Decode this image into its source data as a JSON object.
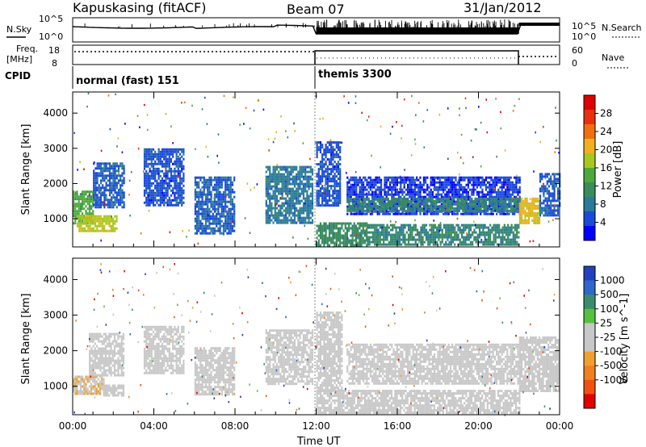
{
  "header": {
    "title": "Kapuskasing (fitACF)",
    "beam": "Beam 07",
    "date": "31/Jan/2012"
  },
  "strips": {
    "nsky_label": "N.Sky",
    "nsearch_label": "N.Search",
    "sky_ticks": [
      "10^5",
      "10^0"
    ],
    "search_ticks": [
      "10^5",
      "10^0"
    ],
    "freq_label": "Freq.",
    "freq_unit": "[MHz]",
    "freq_ticks": [
      "18",
      "8"
    ],
    "nave_label": "Nave",
    "nave_ticks": [
      "60",
      "0"
    ],
    "cpid_label": "CPID",
    "cpid_segments": [
      {
        "label": "normal (fast) 151",
        "start_hour": 0,
        "end_hour": 12
      },
      {
        "label": "themis 3300",
        "start_hour": 12,
        "end_hour": 24
      }
    ]
  },
  "x_axis": {
    "title": "Time UT",
    "ticks": [
      "00:00",
      "04:00",
      "08:00",
      "12:00",
      "16:00",
      "20:00",
      "00:00"
    ],
    "tick_hours": [
      0,
      4,
      8,
      12,
      16,
      20,
      24
    ],
    "range_hours": [
      0,
      24
    ]
  },
  "colors": {
    "power_scale": [
      "#0000ff",
      "#1a4ad8",
      "#2a7a9a",
      "#3a8c5a",
      "#4daa3a",
      "#a8c820",
      "#f0b020",
      "#f07010",
      "#e83010",
      "#e00000"
    ],
    "velocity_scale": [
      "#2040c0",
      "#2e68c8",
      "#3c8c6c",
      "#58c040",
      "#c8c8c8",
      "#c8c8c8",
      "#f0a030",
      "#f08020",
      "#f05010",
      "#e00000"
    ]
  },
  "chart_data": [
    {
      "type": "heatmap",
      "name": "power-panel",
      "xlabel": "Time UT",
      "ylabel": "Slant Range [km]",
      "xlim": [
        0,
        24
      ],
      "ylim": [
        200,
        4600
      ],
      "yticks": [
        1000,
        2000,
        3000,
        4000
      ],
      "colorbar": {
        "label": "Power [dB]",
        "ticks": [
          4,
          8,
          12,
          16,
          20,
          24,
          28
        ],
        "range": [
          0,
          32
        ]
      },
      "regions": [
        {
          "t0": 0.0,
          "t1": 1.0,
          "r0": 900,
          "r1": 1800,
          "value": 14
        },
        {
          "t0": 1.0,
          "t1": 2.5,
          "r0": 1300,
          "r1": 2600,
          "value": 6
        },
        {
          "t0": 0.2,
          "t1": 2.2,
          "r0": 650,
          "r1": 1100,
          "value": 18
        },
        {
          "t0": 3.5,
          "t1": 5.5,
          "r0": 1400,
          "r1": 3000,
          "value": 5
        },
        {
          "t0": 6.0,
          "t1": 8.0,
          "r0": 600,
          "r1": 2200,
          "value": 6
        },
        {
          "t0": 9.5,
          "t1": 11.8,
          "r0": 900,
          "r1": 2500,
          "value": 8
        },
        {
          "t0": 12.0,
          "t1": 13.2,
          "r0": 1400,
          "r1": 3200,
          "value": 5
        },
        {
          "t0": 13.5,
          "t1": 22.0,
          "r0": 1100,
          "r1": 2200,
          "value": 4
        },
        {
          "t0": 13.5,
          "t1": 22.0,
          "r0": 1250,
          "r1": 1600,
          "value": 10
        },
        {
          "t0": 12.0,
          "t1": 14.5,
          "r0": 250,
          "r1": 900,
          "value": 11
        },
        {
          "t0": 14.5,
          "t1": 22.0,
          "r0": 250,
          "r1": 850,
          "value": 10
        },
        {
          "t0": 22.0,
          "t1": 23.0,
          "r0": 900,
          "r1": 1600,
          "value": 20
        },
        {
          "t0": 23.0,
          "t1": 24.0,
          "r0": 1100,
          "r1": 2300,
          "value": 6
        }
      ]
    },
    {
      "type": "heatmap",
      "name": "velocity-panel",
      "xlabel": "Time UT",
      "ylabel": "Slant Range [km]",
      "xlim": [
        0,
        24
      ],
      "ylim": [
        200,
        4600
      ],
      "yticks": [
        1000,
        2000,
        3000,
        4000
      ],
      "colorbar": {
        "label": "Velocity [m s^-1]",
        "ticks": [
          1000,
          500,
          100,
          25,
          -25,
          -100,
          -500,
          -1000
        ],
        "range": [
          -1200,
          1200
        ]
      },
      "regions": [
        {
          "t0": 0.0,
          "t1": 1.5,
          "r0": 800,
          "r1": 1300,
          "value": -200
        },
        {
          "t0": 1.5,
          "t1": 2.5,
          "r0": 750,
          "r1": 1050,
          "value": 0
        },
        {
          "t0": 0.8,
          "t1": 2.5,
          "r0": 1300,
          "r1": 2500,
          "value": 0
        },
        {
          "t0": 3.5,
          "t1": 5.5,
          "r0": 1400,
          "r1": 2700,
          "value": 0
        },
        {
          "t0": 6.0,
          "t1": 8.0,
          "r0": 800,
          "r1": 2100,
          "value": -60
        },
        {
          "t0": 9.5,
          "t1": 11.8,
          "r0": 1100,
          "r1": 2600,
          "value": 0
        },
        {
          "t0": 12.0,
          "t1": 13.3,
          "r0": 900,
          "r1": 3100,
          "value": -80
        },
        {
          "t0": 13.5,
          "t1": 22.0,
          "r0": 1100,
          "r1": 2200,
          "value": 0
        },
        {
          "t0": 12.0,
          "t1": 22.0,
          "r0": 250,
          "r1": 900,
          "value": 0
        },
        {
          "t0": 22.0,
          "t1": 24.0,
          "r0": 900,
          "r1": 2400,
          "value": -70
        }
      ]
    }
  ]
}
